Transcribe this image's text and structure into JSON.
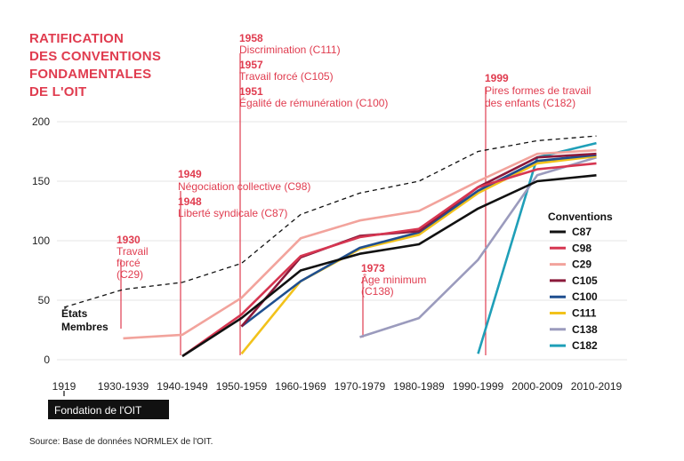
{
  "chart_data": {
    "type": "line",
    "title_lines": [
      "RATIFICATION",
      "DES CONVENTIONS",
      "FONDAMENTALES",
      "DE L'OIT"
    ],
    "categories": [
      "1919",
      "1930-1939",
      "1940-1949",
      "1950-1959",
      "1960-1969",
      "1970-1979",
      "1980-1989",
      "1990-1999",
      "2000-2009",
      "2010-2019"
    ],
    "ylim": [
      0,
      200
    ],
    "yticks": [
      0,
      50,
      100,
      150,
      200
    ],
    "member_states": {
      "label_lines": [
        "États",
        "Membres"
      ],
      "values": [
        44,
        59,
        65,
        81,
        122,
        140,
        150,
        175,
        184,
        188
      ]
    },
    "series": [
      {
        "name": "C87",
        "color": "#111111",
        "values": [
          null,
          null,
          3,
          35,
          75,
          89,
          97,
          127,
          150,
          155
        ]
      },
      {
        "name": "C98",
        "color": "#d63651",
        "values": [
          null,
          null,
          3,
          38,
          87,
          103,
          110,
          145,
          160,
          165
        ]
      },
      {
        "name": "C29",
        "color": "#f2a39c",
        "values": [
          null,
          18,
          21,
          52,
          102,
          117,
          125,
          150,
          173,
          176
        ]
      },
      {
        "name": "C105",
        "color": "#8b1a3b",
        "values": [
          null,
          null,
          null,
          28,
          86,
          104,
          108,
          145,
          170,
          173
        ]
      },
      {
        "name": "C100",
        "color": "#1f4f8f",
        "values": [
          null,
          null,
          null,
          28,
          66,
          94,
          107,
          142,
          167,
          172
        ]
      },
      {
        "name": "C111",
        "color": "#f2c21b",
        "values": [
          null,
          null,
          null,
          5,
          66,
          93,
          105,
          140,
          165,
          171
        ]
      },
      {
        "name": "C138",
        "color": "#9b9bbd",
        "values": [
          null,
          null,
          null,
          null,
          null,
          19,
          35,
          84,
          155,
          170
        ]
      },
      {
        "name": "C182",
        "color": "#1f9fb8",
        "values": [
          null,
          null,
          null,
          null,
          null,
          null,
          null,
          5,
          170,
          182
        ]
      }
    ],
    "legend_title": "Conventions",
    "annotations": [
      {
        "lines": [
          {
            "text": "1958",
            "bold": true
          },
          {
            "text": "Discrimination (C111)"
          },
          {
            "text": "1957",
            "bold": true
          },
          {
            "text": "Travail forcé (C105)"
          },
          {
            "text": "1951",
            "bold": true
          },
          {
            "text": "Égalité de rémunération (C100)"
          }
        ]
      },
      {
        "lines": [
          {
            "text": "1930",
            "bold": true
          },
          {
            "text": "Travail"
          },
          {
            "text": "forcé"
          },
          {
            "text": "(C29)"
          }
        ]
      },
      {
        "lines": [
          {
            "text": "1949",
            "bold": true
          },
          {
            "text": "Négociation collective (C98)"
          },
          {
            "text": "1948",
            "bold": true
          },
          {
            "text": "Liberté syndicale (C87)"
          }
        ]
      },
      {
        "lines": [
          {
            "text": "1973",
            "bold": true
          },
          {
            "text": "Âge minimum"
          },
          {
            "text": "(C138)"
          }
        ]
      },
      {
        "lines": [
          {
            "text": "1999",
            "bold": true
          },
          {
            "text": "Pires formes de travail"
          },
          {
            "text": "des enfants (C182)"
          }
        ]
      }
    ],
    "founding_label": "Fondation de l'OIT",
    "source": "Source: Base de données NORMLEX de l'OIT."
  }
}
